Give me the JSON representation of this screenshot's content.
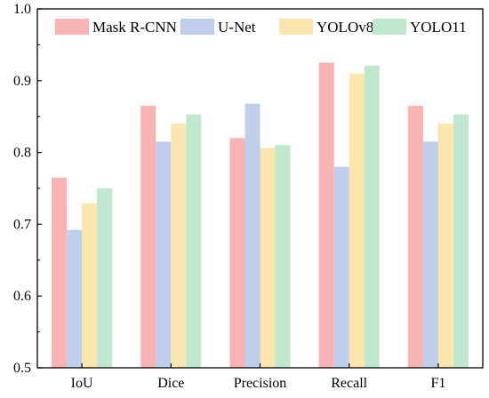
{
  "chart_data": {
    "type": "bar",
    "categories": [
      "IoU",
      "Dice",
      "Precision",
      "Recall",
      "F1"
    ],
    "series": [
      {
        "name": "Mask R-CNN",
        "color": "#F8B4B4",
        "values": [
          0.765,
          0.865,
          0.82,
          0.925,
          0.865
        ]
      },
      {
        "name": "U-Net",
        "color": "#BFCFEB",
        "values": [
          0.692,
          0.815,
          0.868,
          0.78,
          0.815
        ]
      },
      {
        "name": "YOLOv8",
        "color": "#FBE7AD",
        "values": [
          0.729,
          0.84,
          0.806,
          0.91,
          0.84
        ]
      },
      {
        "name": "YOLO11",
        "color": "#BFE8CF",
        "values": [
          0.75,
          0.853,
          0.81,
          0.921,
          0.853
        ]
      }
    ],
    "ylim": [
      0.5,
      1.0
    ],
    "yticks": [
      "0.5",
      "0.6",
      "0.7",
      "0.8",
      "0.9",
      "1.0"
    ],
    "grid": false,
    "legend_position": "top"
  }
}
